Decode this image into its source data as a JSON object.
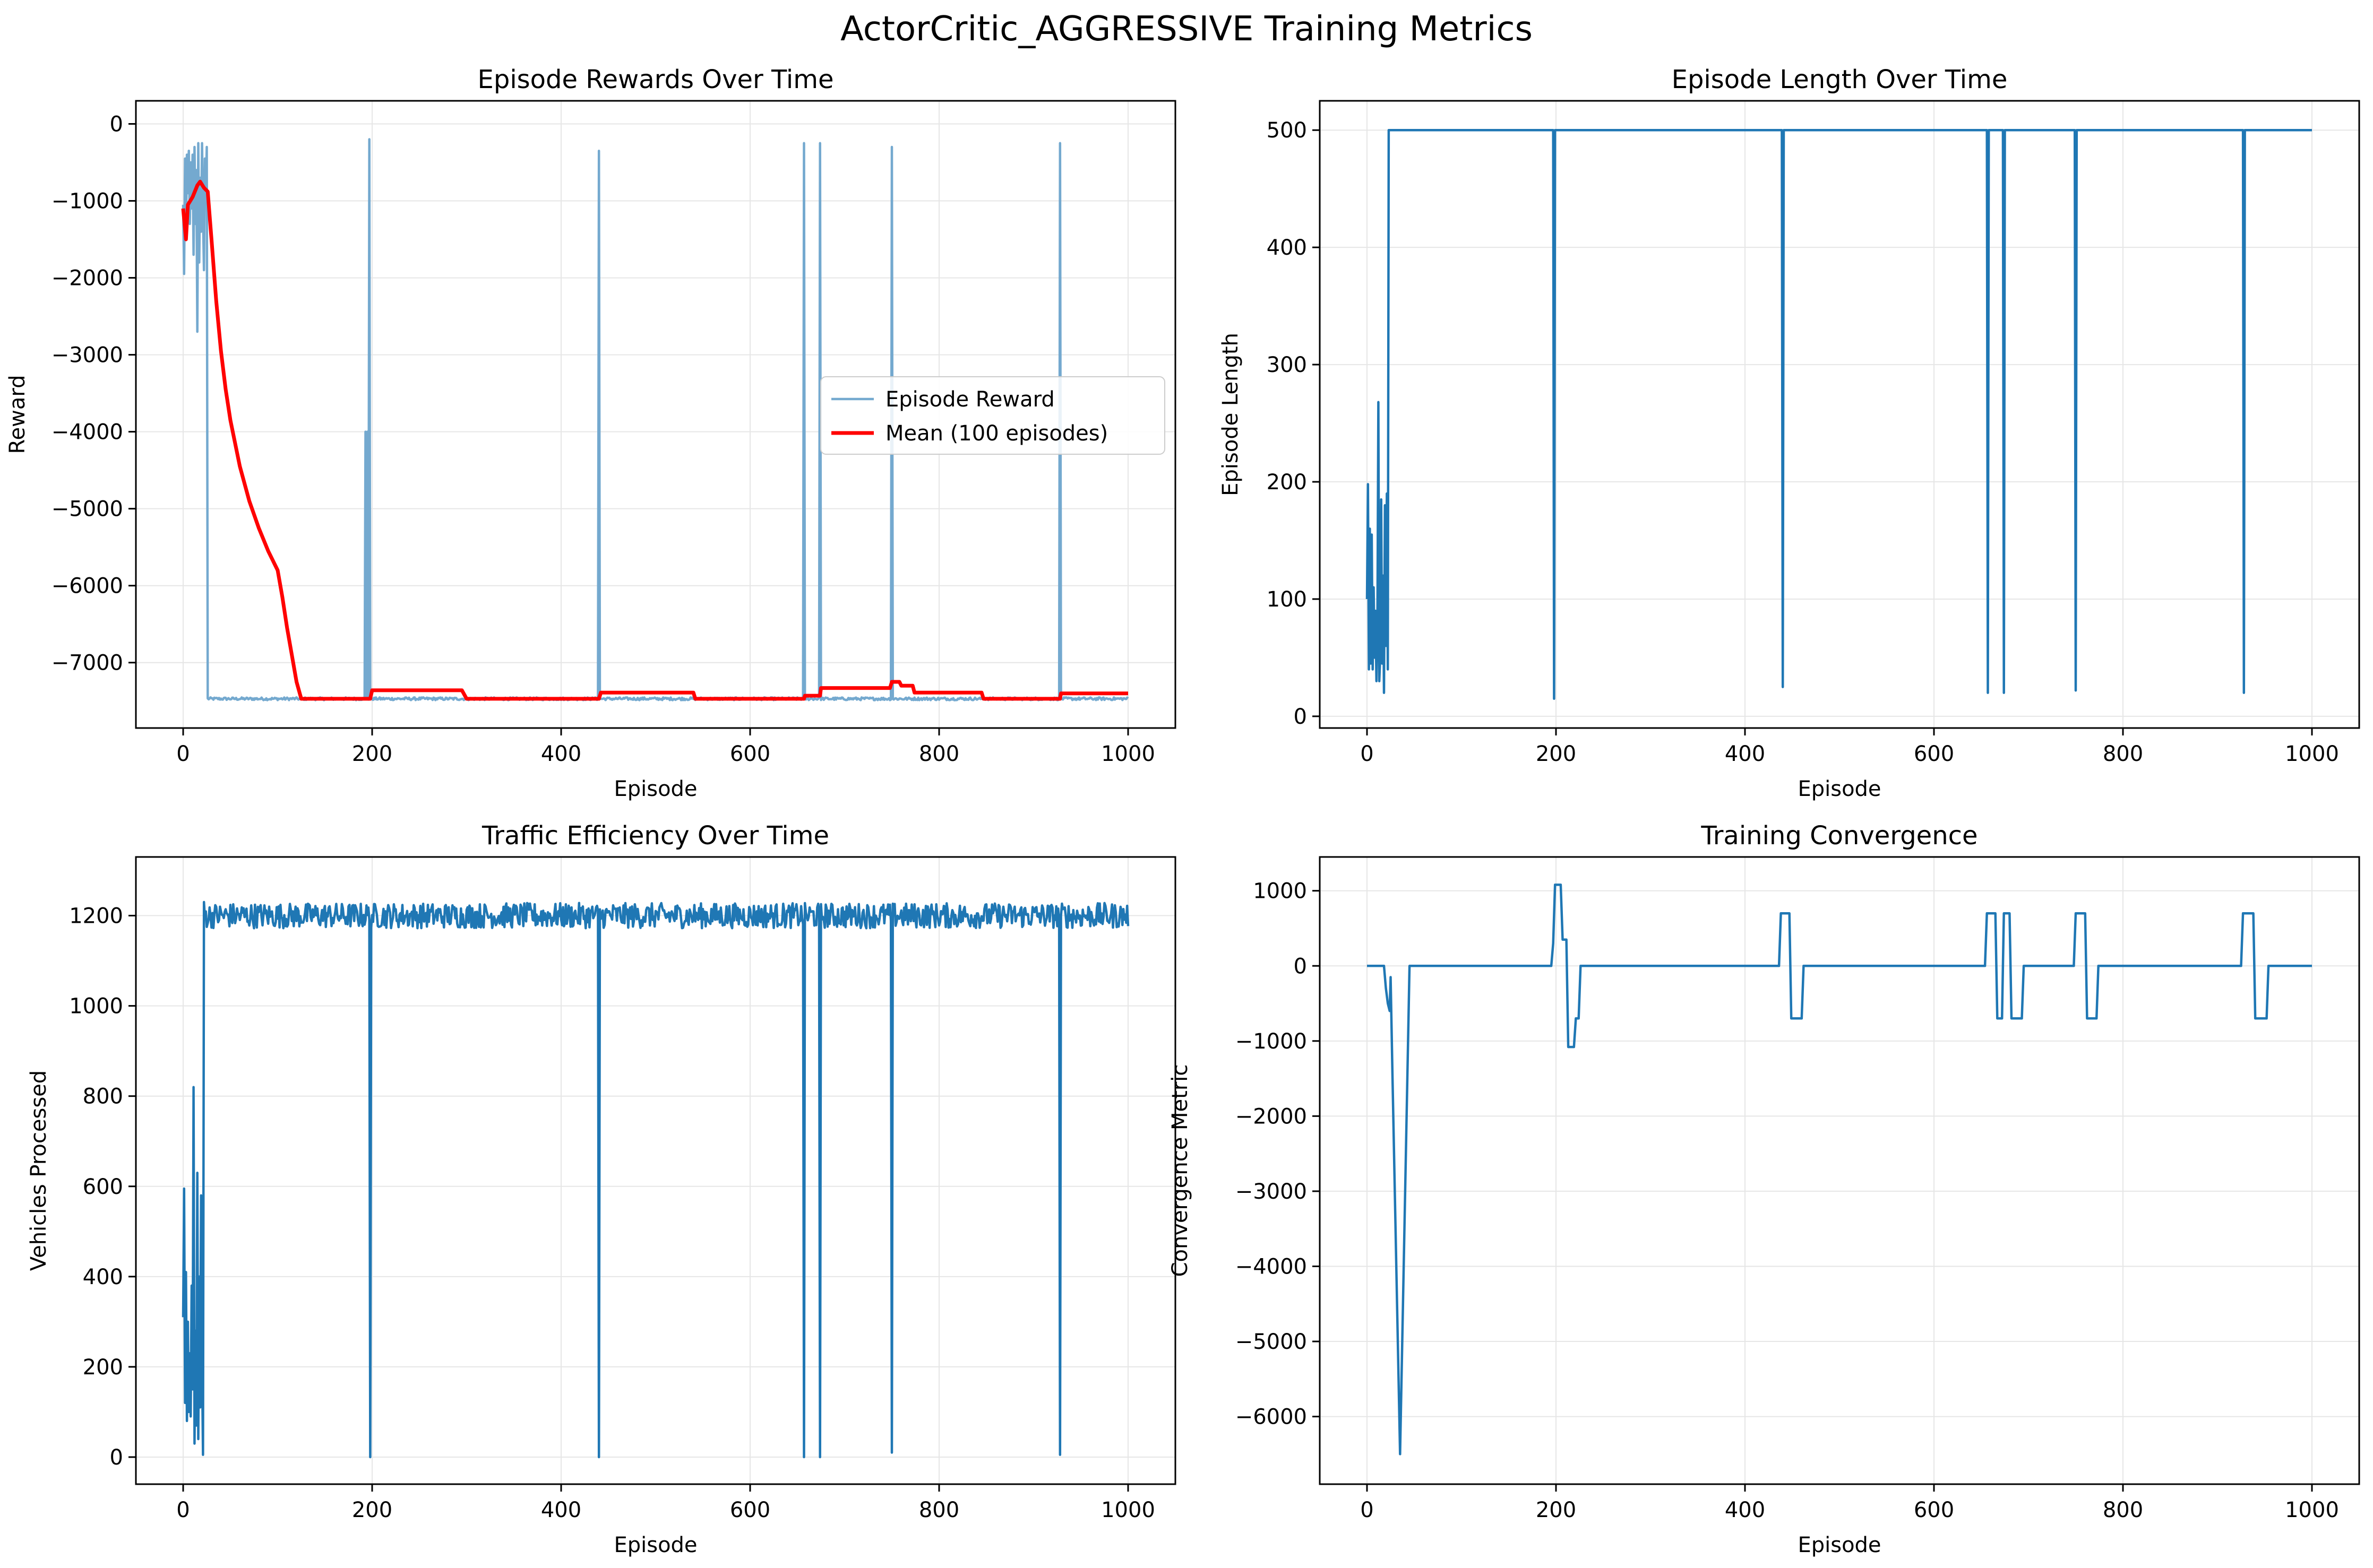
{
  "figure_title": "ActorCritic_AGGRESSIVE Training Metrics",
  "colors": {
    "series_main": "#1f77b4",
    "series_light": "#74a9cf",
    "mean": "#ff0000",
    "grid": "#e6e6e6",
    "axes": "#000000"
  },
  "chart_data": [
    {
      "id": "rewards",
      "type": "line",
      "title": "Episode Rewards Over Time",
      "xlabel": "Episode",
      "ylabel": "Reward",
      "xlim": [
        -50,
        1050
      ],
      "ylim": [
        -7850,
        300
      ],
      "xticks": [
        0,
        200,
        400,
        600,
        800,
        1000
      ],
      "yticks": [
        0,
        -1000,
        -2000,
        -3000,
        -4000,
        -5000,
        -6000,
        -7000
      ],
      "tick_labels_x": [
        "0",
        "200",
        "400",
        "600",
        "800",
        "1000"
      ],
      "tick_labels_y": [
        "0",
        "−1000",
        "−2000",
        "−3000",
        "−4000",
        "−5000",
        "−6000",
        "−7000"
      ],
      "legend": {
        "position": "center-right",
        "entries": [
          "Episode Reward",
          "Mean (100 episodes)"
        ]
      },
      "series": [
        {
          "name": "Episode Reward",
          "color": "#74a9cf",
          "generator": "noisy_baseline",
          "baseline": -7470,
          "noise": 18,
          "early": [
            [
              0,
              -1050
            ],
            [
              1,
              -1950
            ],
            [
              2,
              -450
            ],
            [
              3,
              -1500
            ],
            [
              4,
              -400
            ],
            [
              5,
              -900
            ],
            [
              6,
              -350
            ],
            [
              7,
              -1300
            ],
            [
              8,
              -500
            ],
            [
              9,
              -1100
            ],
            [
              10,
              -400
            ],
            [
              11,
              -1700
            ],
            [
              12,
              -300
            ],
            [
              13,
              -1300
            ],
            [
              14,
              -600
            ],
            [
              15,
              -2700
            ],
            [
              16,
              -250
            ],
            [
              17,
              -1800
            ],
            [
              18,
              -700
            ],
            [
              19,
              -1400
            ],
            [
              20,
              -250
            ],
            [
              21,
              -1200
            ],
            [
              22,
              -1900
            ],
            [
              23,
              -450
            ],
            [
              24,
              -900
            ],
            [
              25,
              -300
            ]
          ],
          "spikes": [
            [
              193,
              -4000
            ],
            [
              195,
              -4000
            ],
            [
              197,
              -200
            ],
            [
              440,
              -350
            ],
            [
              657,
              -250
            ],
            [
              674,
              -250
            ],
            [
              750,
              -300
            ],
            [
              928,
              -250
            ]
          ]
        },
        {
          "name": "Mean (100 episodes)",
          "color": "#ff0000",
          "points": [
            [
              0,
              -1100
            ],
            [
              3,
              -1500
            ],
            [
              5,
              -1050
            ],
            [
              10,
              -950
            ],
            [
              15,
              -800
            ],
            [
              18,
              -750
            ],
            [
              22,
              -830
            ],
            [
              26,
              -880
            ],
            [
              30,
              -1500
            ],
            [
              35,
              -2300
            ],
            [
              40,
              -2950
            ],
            [
              45,
              -3450
            ],
            [
              50,
              -3850
            ],
            [
              60,
              -4450
            ],
            [
              70,
              -4900
            ],
            [
              80,
              -5250
            ],
            [
              90,
              -5550
            ],
            [
              100,
              -5800
            ],
            [
              105,
              -6150
            ],
            [
              110,
              -6550
            ],
            [
              115,
              -6900
            ],
            [
              120,
              -7250
            ],
            [
              125,
              -7470
            ],
            [
              198,
              -7470
            ],
            [
              200,
              -7360
            ],
            [
              295,
              -7360
            ],
            [
              300,
              -7470
            ],
            [
              440,
              -7470
            ],
            [
              442,
              -7390
            ],
            [
              540,
              -7390
            ],
            [
              542,
              -7470
            ],
            [
              657,
              -7470
            ],
            [
              658,
              -7430
            ],
            [
              674,
              -7430
            ],
            [
              675,
              -7330
            ],
            [
              748,
              -7330
            ],
            [
              750,
              -7250
            ],
            [
              758,
              -7250
            ],
            [
              760,
              -7300
            ],
            [
              772,
              -7300
            ],
            [
              774,
              -7390
            ],
            [
              845,
              -7390
            ],
            [
              847,
              -7470
            ],
            [
              928,
              -7470
            ],
            [
              929,
              -7400
            ],
            [
              1000,
              -7400
            ]
          ]
        }
      ]
    },
    {
      "id": "length",
      "type": "line",
      "title": "Episode Length Over Time",
      "xlabel": "Episode",
      "ylabel": "Episode Length",
      "xlim": [
        -50,
        1050
      ],
      "ylim": [
        -10,
        525
      ],
      "xticks": [
        0,
        200,
        400,
        600,
        800,
        1000
      ],
      "yticks": [
        0,
        100,
        200,
        300,
        400,
        500
      ],
      "tick_labels_x": [
        "0",
        "200",
        "400",
        "600",
        "800",
        "1000"
      ],
      "tick_labels_y": [
        "0",
        "100",
        "200",
        "300",
        "400",
        "500"
      ],
      "series": [
        {
          "name": "Episode Length",
          "color": "#1f77b4",
          "generator": "noisy_baseline",
          "baseline": 500,
          "noise": 0,
          "early": [
            [
              0,
              100
            ],
            [
              1,
              198
            ],
            [
              2,
              40
            ],
            [
              3,
              160
            ],
            [
              4,
              45
            ],
            [
              5,
              155
            ],
            [
              6,
              40
            ],
            [
              7,
              110
            ],
            [
              8,
              50
            ],
            [
              9,
              90
            ],
            [
              10,
              30
            ],
            [
              11,
              75
            ],
            [
              12,
              268
            ],
            [
              13,
              30
            ],
            [
              14,
              50
            ],
            [
              15,
              185
            ],
            [
              16,
              45
            ],
            [
              17,
              120
            ],
            [
              18,
              20
            ],
            [
              19,
              180
            ],
            [
              20,
              60
            ],
            [
              21,
              190
            ],
            [
              22,
              40
            ],
            [
              23,
              500
            ]
          ],
          "spikes": [
            [
              198,
              15
            ],
            [
              440,
              25
            ],
            [
              657,
              20
            ],
            [
              674,
              20
            ],
            [
              750,
              22
            ],
            [
              928,
              20
            ]
          ]
        }
      ]
    },
    {
      "id": "efficiency",
      "type": "line",
      "title": "Traffic Efficiency Over Time",
      "xlabel": "Episode",
      "ylabel": "Vehicles Processed",
      "xlim": [
        -50,
        1050
      ],
      "ylim": [
        -60,
        1330
      ],
      "xticks": [
        0,
        200,
        400,
        600,
        800,
        1000
      ],
      "yticks": [
        0,
        200,
        400,
        600,
        800,
        1000,
        1200
      ],
      "tick_labels_x": [
        "0",
        "200",
        "400",
        "600",
        "800",
        "1000"
      ],
      "tick_labels_y": [
        "0",
        "200",
        "400",
        "600",
        "800",
        "1000",
        "1200"
      ],
      "series": [
        {
          "name": "Vehicles Processed",
          "color": "#1f77b4",
          "generator": "noisy_baseline",
          "baseline": 1200,
          "noise": 28,
          "early": [
            [
              0,
              310
            ],
            [
              1,
              595
            ],
            [
              2,
              120
            ],
            [
              3,
              410
            ],
            [
              4,
              80
            ],
            [
              5,
              300
            ],
            [
              6,
              100
            ],
            [
              7,
              230
            ],
            [
              8,
              90
            ],
            [
              9,
              380
            ],
            [
              10,
              150
            ],
            [
              11,
              820
            ],
            [
              12,
              30
            ],
            [
              13,
              280
            ],
            [
              14,
              70
            ],
            [
              15,
              630
            ],
            [
              16,
              40
            ],
            [
              17,
              400
            ],
            [
              18,
              110
            ],
            [
              19,
              580
            ],
            [
              20,
              200
            ],
            [
              21,
              5
            ],
            [
              22,
              1230
            ]
          ],
          "spikes": [
            [
              198,
              0
            ],
            [
              440,
              0
            ],
            [
              657,
              0
            ],
            [
              674,
              0
            ],
            [
              750,
              10
            ],
            [
              928,
              5
            ]
          ]
        }
      ]
    },
    {
      "id": "convergence",
      "type": "line",
      "title": "Training Convergence",
      "xlabel": "Episode",
      "ylabel": "Convergence Metric",
      "xlim": [
        -50,
        1050
      ],
      "ylim": [
        -6900,
        1450
      ],
      "xticks": [
        0,
        200,
        400,
        600,
        800,
        1000
      ],
      "yticks": [
        1000,
        0,
        -1000,
        -2000,
        -3000,
        -4000,
        -5000,
        -6000
      ],
      "tick_labels_x": [
        "0",
        "200",
        "400",
        "600",
        "800",
        "1000"
      ],
      "tick_labels_y": [
        "1000",
        "0",
        "−1000",
        "−2000",
        "−3000",
        "−4000",
        "−5000",
        "−6000"
      ],
      "series": [
        {
          "name": "Convergence Metric",
          "color": "#1f77b4",
          "points": [
            [
              0,
              0
            ],
            [
              18,
              0
            ],
            [
              20,
              -300
            ],
            [
              22,
              -500
            ],
            [
              24,
              -600
            ],
            [
              25,
              -150
            ],
            [
              27,
              -1500
            ],
            [
              35,
              -6500
            ],
            [
              45,
              0
            ],
            [
              195,
              0
            ],
            [
              197,
              300
            ],
            [
              199,
              1080
            ],
            [
              205,
              1080
            ],
            [
              207,
              350
            ],
            [
              211,
              350
            ],
            [
              213,
              -1080
            ],
            [
              219,
              -1080
            ],
            [
              221,
              -700
            ],
            [
              224,
              -700
            ],
            [
              226,
              0
            ],
            [
              436,
              0
            ],
            [
              438,
              700
            ],
            [
              447,
              700
            ],
            [
              449,
              -700
            ],
            [
              460,
              -700
            ],
            [
              462,
              0
            ],
            [
              654,
              0
            ],
            [
              656,
              700
            ],
            [
              665,
              700
            ],
            [
              667,
              -700
            ],
            [
              672,
              -700
            ],
            [
              673,
              0
            ],
            [
              674,
              700
            ],
            [
              680,
              700
            ],
            [
              682,
              -700
            ],
            [
              693,
              -700
            ],
            [
              695,
              0
            ],
            [
              748,
              0
            ],
            [
              750,
              700
            ],
            [
              760,
              700
            ],
            [
              762,
              -700
            ],
            [
              772,
              -700
            ],
            [
              774,
              0
            ],
            [
              925,
              0
            ],
            [
              927,
              700
            ],
            [
              938,
              700
            ],
            [
              940,
              -700
            ],
            [
              952,
              -700
            ],
            [
              954,
              0
            ],
            [
              1000,
              0
            ]
          ]
        }
      ]
    }
  ]
}
